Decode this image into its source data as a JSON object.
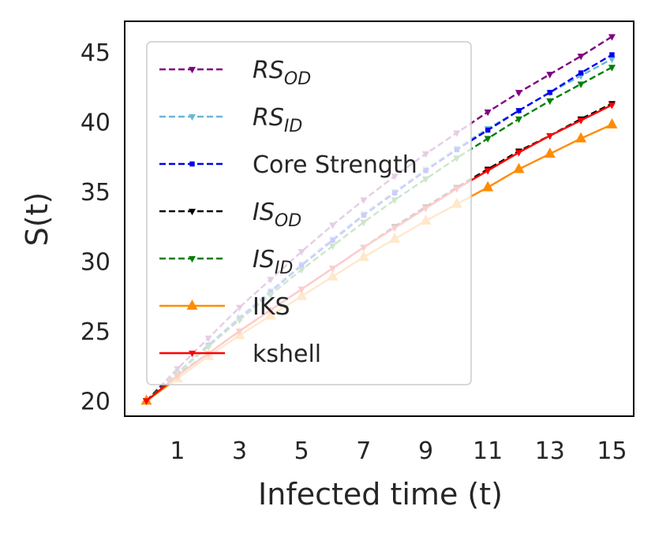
{
  "chart_data": {
    "type": "line",
    "title": "",
    "xlabel": "Infected time (t)",
    "ylabel": "S(t)",
    "xlim": [
      -0.7,
      15.7
    ],
    "ylim": [
      18.9,
      47.2
    ],
    "x_ticks": [
      1,
      3,
      5,
      7,
      9,
      11,
      13,
      15
    ],
    "y_ticks": [
      20,
      25,
      30,
      35,
      40,
      45
    ],
    "grid": false,
    "legend_position": "upper-left",
    "x": [
      0,
      1,
      2,
      3,
      4,
      5,
      6,
      7,
      8,
      9,
      10,
      11,
      12,
      13,
      14,
      15
    ],
    "series": [
      {
        "name": "RS_OD",
        "label_main": "RS",
        "label_sub": "OD",
        "italic": true,
        "color": "#800080",
        "dash": true,
        "marker": "tri-down",
        "values": [
          20.0,
          22.3,
          24.5,
          26.7,
          28.7,
          30.7,
          32.6,
          34.4,
          36.1,
          37.7,
          39.2,
          40.7,
          42.1,
          43.4,
          44.7,
          46.1
        ]
      },
      {
        "name": "RS_ID",
        "label_main": "RS",
        "label_sub": "ID",
        "italic": true,
        "color": "#6BB7D6",
        "dash": true,
        "marker": "tri-down",
        "values": [
          20.0,
          22.0,
          24.0,
          26.0,
          27.9,
          29.8,
          31.6,
          33.4,
          35.0,
          36.6,
          38.1,
          39.5,
          40.8,
          42.1,
          43.3,
          44.5
        ]
      },
      {
        "name": "Core Strength",
        "label_main": "Core Strength",
        "label_sub": "",
        "italic": false,
        "color": "#0000EE",
        "dash": true,
        "marker": "square",
        "values": [
          20.0,
          22.0,
          24.0,
          25.9,
          27.8,
          29.7,
          31.5,
          33.3,
          34.9,
          36.5,
          38.0,
          39.4,
          40.8,
          42.1,
          43.5,
          44.8
        ]
      },
      {
        "name": "IS_OD",
        "label_main": "IS",
        "label_sub": "OD",
        "italic": true,
        "color": "#000000",
        "dash": true,
        "marker": "tri-down",
        "values": [
          20.0,
          21.9,
          23.4,
          25.0,
          26.5,
          28.0,
          29.5,
          31.0,
          32.5,
          33.9,
          35.3,
          36.6,
          37.9,
          39.0,
          40.2,
          41.3
        ]
      },
      {
        "name": "IS_ID",
        "label_main": "IS",
        "label_sub": "ID",
        "italic": true,
        "color": "#008000",
        "dash": true,
        "marker": "tri-down",
        "values": [
          20.0,
          22.0,
          23.9,
          25.8,
          27.6,
          29.4,
          31.1,
          32.8,
          34.4,
          35.9,
          37.4,
          38.8,
          40.2,
          41.5,
          42.7,
          43.9
        ]
      },
      {
        "name": "IKS",
        "label_main": "IKS",
        "label_sub": "",
        "italic": false,
        "color": "#FF8C00",
        "dash": false,
        "marker": "tri-up",
        "values": [
          20.0,
          21.6,
          23.2,
          24.7,
          26.1,
          27.5,
          28.9,
          30.3,
          31.6,
          32.9,
          34.1,
          35.3,
          36.6,
          37.7,
          38.8,
          39.8
        ]
      },
      {
        "name": "kshell",
        "label_main": "kshell",
        "label_sub": "",
        "italic": false,
        "color": "#FF0000",
        "dash": false,
        "marker": "tri-down",
        "values": [
          20.0,
          21.8,
          23.4,
          25.0,
          26.5,
          28.0,
          29.5,
          31.0,
          32.4,
          33.8,
          35.2,
          36.5,
          37.8,
          39.0,
          40.1,
          41.2
        ]
      }
    ]
  }
}
